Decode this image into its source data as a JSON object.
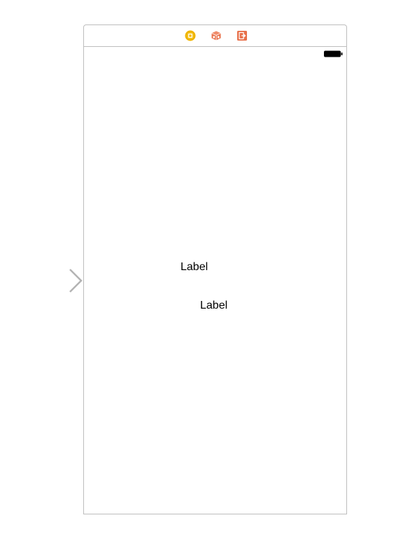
{
  "scene": {
    "dock": {
      "icons": [
        "view-controller-icon",
        "first-responder-icon",
        "exit-icon"
      ]
    },
    "status_bar": {
      "battery_icon": "battery-icon"
    },
    "labels": [
      {
        "text": "Label"
      },
      {
        "text": "Label"
      }
    ]
  },
  "colors": {
    "view_controller": "#f5b800",
    "first_responder": "#e8704a",
    "exit": "#e8704a",
    "border": "#bdbdbd",
    "entry_arrow": "#b3b3b3"
  }
}
